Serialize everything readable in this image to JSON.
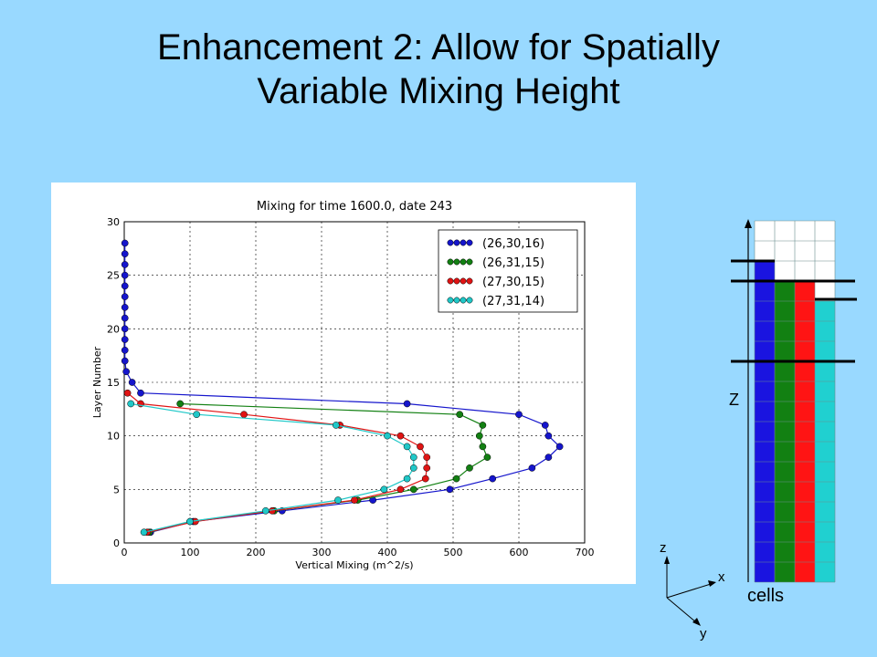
{
  "slide": {
    "title_line1": "Enhancement 2: Allow for Spatially",
    "title_line2": "Variable Mixing Height"
  },
  "chart_data": {
    "type": "line",
    "title": "Mixing for time 1600.0, date 243",
    "xlabel": "Vertical Mixing (m^2/s)",
    "ylabel": "Layer Number",
    "xlim": [
      0,
      700
    ],
    "ylim": [
      0,
      30
    ],
    "xticks": [
      "0",
      "100",
      "200",
      "300",
      "400",
      "500",
      "600",
      "700"
    ],
    "yticks": [
      "0",
      "5",
      "10",
      "15",
      "20",
      "25",
      "30"
    ],
    "grid": true,
    "legend_position": "top-right",
    "series": [
      {
        "name": "(26,30,16)",
        "color": "#1515cc",
        "y": [
          1,
          2,
          3,
          4,
          5,
          6,
          7,
          8,
          9,
          10,
          11,
          12,
          13,
          14,
          15,
          16,
          17,
          18,
          19,
          20,
          21,
          22,
          23,
          24,
          25,
          26,
          27,
          28
        ],
        "x": [
          40,
          105,
          240,
          378,
          495,
          560,
          620,
          645,
          662,
          645,
          640,
          600,
          430,
          25,
          12,
          3,
          1,
          1,
          1,
          1,
          1,
          1,
          1,
          1,
          1,
          1,
          1,
          1
        ]
      },
      {
        "name": "(26,31,15)",
        "color": "#128012",
        "y": [
          1,
          2,
          3,
          4,
          5,
          6,
          7,
          8,
          9,
          10,
          11,
          12,
          13
        ],
        "x": [
          38,
          100,
          228,
          355,
          440,
          505,
          525,
          552,
          545,
          540,
          545,
          510,
          85
        ]
      },
      {
        "name": "(27,30,15)",
        "color": "#e01414",
        "y": [
          1,
          2,
          3,
          4,
          5,
          6,
          7,
          8,
          9,
          10,
          11,
          12,
          13,
          14
        ],
        "x": [
          35,
          108,
          225,
          350,
          420,
          458,
          460,
          460,
          450,
          420,
          328,
          182,
          25,
          5
        ]
      },
      {
        "name": "(27,31,14)",
        "color": "#20c8c8",
        "y": [
          1,
          2,
          3,
          4,
          5,
          6,
          7,
          8,
          9,
          10,
          11,
          12,
          13
        ],
        "x": [
          30,
          100,
          215,
          325,
          395,
          430,
          440,
          440,
          430,
          400,
          322,
          110,
          10
        ]
      }
    ]
  },
  "diagram": {
    "z_axis_label": "Z",
    "cells_label": "cells",
    "axis_z": "z",
    "axis_x": "x",
    "axis_y": "y",
    "column_colors": [
      "#1a14e0",
      "#128012",
      "#ff1414",
      "#20d0d0"
    ],
    "column_heights_cells": [
      16,
      15,
      15,
      14
    ],
    "total_cells": 18
  }
}
